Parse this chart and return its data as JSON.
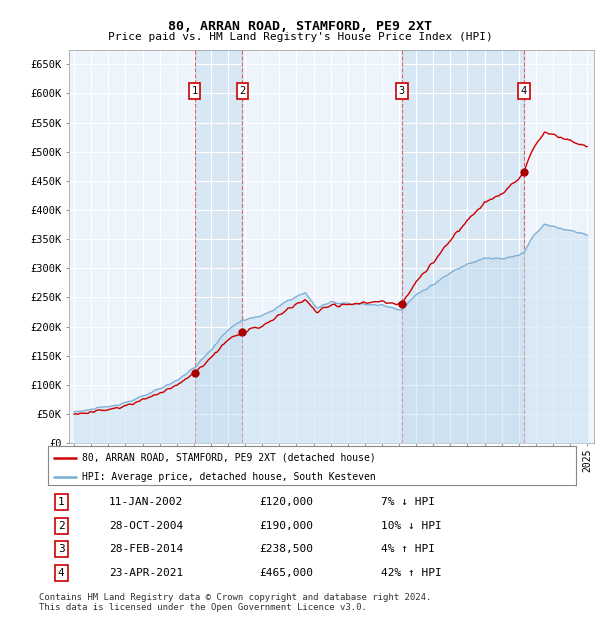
{
  "title": "80, ARRAN ROAD, STAMFORD, PE9 2XT",
  "subtitle": "Price paid vs. HM Land Registry's House Price Index (HPI)",
  "background_color": "#ffffff",
  "plot_bg_color": "#ffffff",
  "grid_color": "#cccccc",
  "sale_color": "#cc0000",
  "hpi_color": "#7aadd4",
  "ylim": [
    0,
    675000
  ],
  "yticks": [
    0,
    50000,
    100000,
    150000,
    200000,
    250000,
    300000,
    350000,
    400000,
    450000,
    500000,
    550000,
    600000,
    650000
  ],
  "ytick_labels": [
    "£0",
    "£50K",
    "£100K",
    "£150K",
    "£200K",
    "£250K",
    "£300K",
    "£350K",
    "£400K",
    "£450K",
    "£500K",
    "£550K",
    "£600K",
    "£650K"
  ],
  "sales": [
    {
      "date": 2002.04,
      "price": 120000,
      "label": "1"
    },
    {
      "date": 2004.83,
      "price": 190000,
      "label": "2"
    },
    {
      "date": 2014.16,
      "price": 238500,
      "label": "3"
    },
    {
      "date": 2021.31,
      "price": 465000,
      "label": "4"
    }
  ],
  "sale_table": [
    {
      "num": "1",
      "date": "11-JAN-2002",
      "price": "£120,000",
      "change": "7% ↓ HPI"
    },
    {
      "num": "2",
      "date": "28-OCT-2004",
      "price": "£190,000",
      "change": "10% ↓ HPI"
    },
    {
      "num": "3",
      "date": "28-FEB-2014",
      "price": "£238,500",
      "change": "4% ↑ HPI"
    },
    {
      "num": "4",
      "date": "23-APR-2021",
      "price": "£465,000",
      "change": "42% ↑ HPI"
    }
  ],
  "legend_sale": "80, ARRAN ROAD, STAMFORD, PE9 2XT (detached house)",
  "legend_hpi": "HPI: Average price, detached house, South Kesteven",
  "footnote": "Contains HM Land Registry data © Crown copyright and database right 2024.\nThis data is licensed under the Open Government Licence v3.0.",
  "vline_color": "#dd4444",
  "box_edge_color": "#cc0000"
}
